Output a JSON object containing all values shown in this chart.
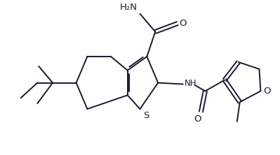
{
  "background_color": "#ffffff",
  "line_color": "#1a1a2e",
  "line_width": 1.4,
  "font_size": 8.5,
  "fig_width": 3.99,
  "fig_height": 2.22,
  "dpi": 100,
  "xlim": [
    0,
    10
  ],
  "ylim": [
    0,
    5.55
  ],
  "C3a": [
    4.55,
    3.05
  ],
  "C7a": [
    4.55,
    2.15
  ],
  "C4": [
    3.95,
    3.55
  ],
  "C5": [
    3.1,
    3.55
  ],
  "C6": [
    2.7,
    2.6
  ],
  "C7": [
    3.1,
    1.65
  ],
  "C3": [
    5.25,
    3.55
  ],
  "C2": [
    5.65,
    2.6
  ],
  "S1": [
    5.0,
    1.65
  ],
  "Ccarbonyl": [
    5.55,
    4.45
  ],
  "O_carbonyl": [
    6.35,
    4.75
  ],
  "N_amide": [
    5.0,
    5.1
  ],
  "NH_x": 6.55,
  "NH_y": 2.55,
  "Camide2_x": 7.35,
  "Camide2_y": 2.3,
  "Oamide2_x": 7.2,
  "Oamide2_y": 1.55,
  "Cf2_x": 8.05,
  "Cf2_y": 2.7,
  "Cf3_x": 8.55,
  "Cf3_y": 3.35,
  "Cf4_x": 9.3,
  "Cf4_y": 3.1,
  "Of_x": 9.35,
  "Of_y": 2.3,
  "Cf5_x": 8.6,
  "Cf5_y": 1.9,
  "CH3f_x": 8.5,
  "CH3f_y": 1.2,
  "Cq_x": 1.85,
  "Cq_y": 2.6,
  "Ma_x": 1.35,
  "Ma_y": 3.2,
  "Mb_x": 1.3,
  "Mb_y": 2.6,
  "Mc_x": 0.7,
  "Mc_y": 2.05,
  "Md_x": 1.3,
  "Md_y": 1.85
}
